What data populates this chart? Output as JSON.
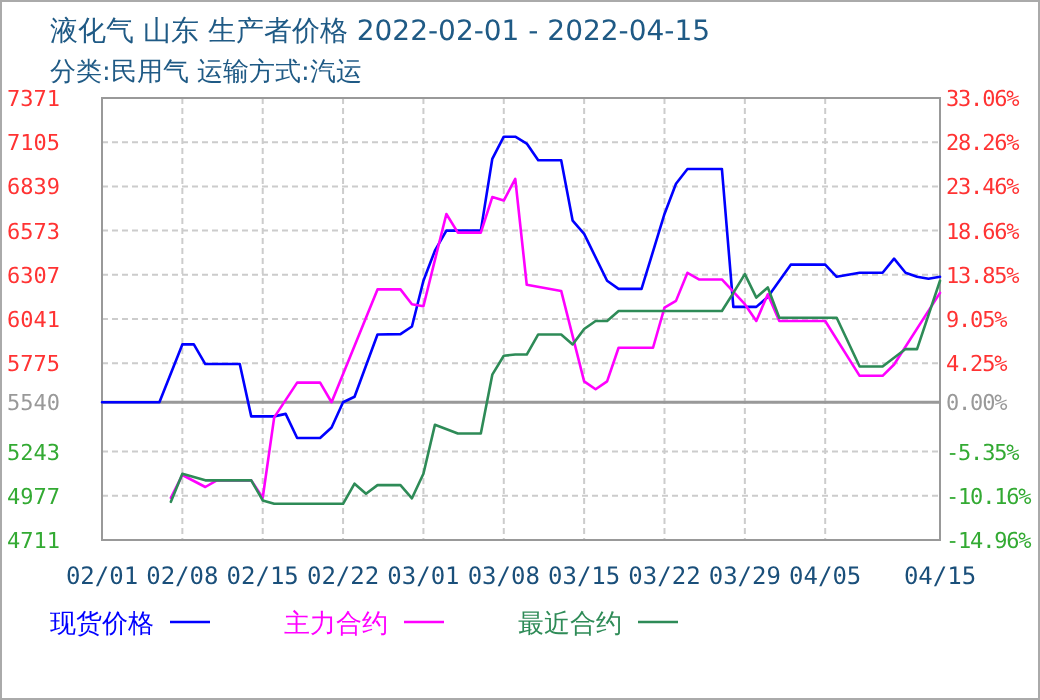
{
  "chart_data": {
    "type": "line",
    "title": "液化气 山东 生产者价格 2022-02-01 - 2022-04-15",
    "subtitle": "分类:民用气 运输方式:汽运",
    "xlim": [
      "2022-02-01",
      "2022-04-15"
    ],
    "xticks": [
      {
        "value": "2022-02-01",
        "label": "02/01"
      },
      {
        "value": "2022-02-08",
        "label": "02/08"
      },
      {
        "value": "2022-02-15",
        "label": "02/15"
      },
      {
        "value": "2022-02-22",
        "label": "02/22"
      },
      {
        "value": "2022-03-01",
        "label": "03/01"
      },
      {
        "value": "2022-03-08",
        "label": "03/08"
      },
      {
        "value": "2022-03-15",
        "label": "03/15"
      },
      {
        "value": "2022-03-22",
        "label": "03/22"
      },
      {
        "value": "2022-03-29",
        "label": "03/29"
      },
      {
        "value": "2022-04-05",
        "label": "04/05"
      },
      {
        "value": "2022-04-15",
        "label": "04/15"
      }
    ],
    "ylim": [
      4711,
      7371
    ],
    "yticks": [
      7371,
      7105,
      6839,
      6573,
      6307,
      6041,
      5775,
      5540,
      5243,
      4977,
      4711
    ],
    "y2lim": [
      -14.96,
      33.06
    ],
    "y2ticks": [
      {
        "value": 33.06,
        "label": "33.06%"
      },
      {
        "value": 28.26,
        "label": "28.26%"
      },
      {
        "value": 23.46,
        "label": "23.46%"
      },
      {
        "value": 18.66,
        "label": "18.66%"
      },
      {
        "value": 13.85,
        "label": "13.85%"
      },
      {
        "value": 9.05,
        "label": "9.05%"
      },
      {
        "value": 4.25,
        "label": "4.25%"
      },
      {
        "value": 0,
        "label": "0.00%"
      },
      {
        "value": -5.35,
        "label": "-5.35%"
      },
      {
        "value": -10.16,
        "label": "-10.16%"
      },
      {
        "value": -14.96,
        "label": "-14.96%"
      }
    ],
    "grid": true,
    "legend": "bottom",
    "ref_lines": [
      {
        "axis": "y",
        "value": 5540,
        "color": "#999999"
      }
    ],
    "series": [
      {
        "name": "现货价格",
        "color": "#0000ff",
        "x": [
          "2022-02-01",
          "2022-02-06",
          "2022-02-08",
          "2022-02-09",
          "2022-02-10",
          "2022-02-13",
          "2022-02-14",
          "2022-02-16",
          "2022-02-17",
          "2022-02-18",
          "2022-02-20",
          "2022-02-21",
          "2022-02-22",
          "2022-02-23",
          "2022-02-25",
          "2022-02-27",
          "2022-02-28",
          "2022-03-01",
          "2022-03-02",
          "2022-03-03",
          "2022-03-06",
          "2022-03-07",
          "2022-03-08",
          "2022-03-09",
          "2022-03-10",
          "2022-03-11",
          "2022-03-13",
          "2022-03-14",
          "2022-03-15",
          "2022-03-17",
          "2022-03-18",
          "2022-03-20",
          "2022-03-22",
          "2022-03-23",
          "2022-03-24",
          "2022-03-27",
          "2022-03-28",
          "2022-03-30",
          "2022-03-31",
          "2022-04-02",
          "2022-04-05",
          "2022-04-06",
          "2022-04-08",
          "2022-04-10",
          "2022-04-11",
          "2022-04-12",
          "2022-04-13",
          "2022-04-14",
          "2022-04-15"
        ],
        "values": [
          5540,
          5540,
          5888,
          5888,
          5770,
          5770,
          5455,
          5455,
          5470,
          5325,
          5325,
          5388,
          5540,
          5573,
          5948,
          5950,
          5996,
          6271,
          6452,
          6573,
          6573,
          7005,
          7138,
          7138,
          7097,
          6996,
          6996,
          6633,
          6553,
          6271,
          6222,
          6222,
          6673,
          6855,
          6944,
          6944,
          6114,
          6114,
          6174,
          6368,
          6368,
          6295,
          6319,
          6319,
          6404,
          6319,
          6295,
          6283,
          6295
        ]
      },
      {
        "name": "主力合约",
        "color": "#ff00ff",
        "x": [
          "2022-02-07",
          "2022-02-08",
          "2022-02-10",
          "2022-02-11",
          "2022-02-14",
          "2022-02-15",
          "2022-02-16",
          "2022-02-18",
          "2022-02-20",
          "2022-02-21",
          "2022-02-25",
          "2022-02-27",
          "2022-02-28",
          "2022-03-01",
          "2022-03-03",
          "2022-03-04",
          "2022-03-06",
          "2022-03-07",
          "2022-03-08",
          "2022-03-09",
          "2022-03-10",
          "2022-03-13",
          "2022-03-15",
          "2022-03-16",
          "2022-03-17",
          "2022-03-18",
          "2022-03-21",
          "2022-03-22",
          "2022-03-23",
          "2022-03-24",
          "2022-03-25",
          "2022-03-27",
          "2022-03-29",
          "2022-03-30",
          "2022-03-31",
          "2022-04-01",
          "2022-04-05",
          "2022-04-08",
          "2022-04-10",
          "2022-04-11",
          "2022-04-15"
        ],
        "values": [
          4965,
          5102,
          5030,
          5070,
          5070,
          4965,
          5449,
          5658,
          5658,
          5540,
          6219,
          6219,
          6130,
          6118,
          6673,
          6561,
          6561,
          6775,
          6754,
          6884,
          6247,
          6210,
          5666,
          5618,
          5666,
          5868,
          5868,
          6110,
          6150,
          6319,
          6279,
          6279,
          6130,
          6029,
          6190,
          6029,
          6029,
          5699,
          5699,
          5767,
          6198
        ]
      },
      {
        "name": "最近合约",
        "color": "#2e8b57",
        "x": [
          "2022-02-07",
          "2022-02-08",
          "2022-02-10",
          "2022-02-14",
          "2022-02-15",
          "2022-02-16",
          "2022-02-22",
          "2022-02-23",
          "2022-02-24",
          "2022-02-25",
          "2022-02-27",
          "2022-02-28",
          "2022-03-01",
          "2022-03-02",
          "2022-03-04",
          "2022-03-06",
          "2022-03-07",
          "2022-03-08",
          "2022-03-09",
          "2022-03-10",
          "2022-03-11",
          "2022-03-13",
          "2022-03-14",
          "2022-03-15",
          "2022-03-16",
          "2022-03-17",
          "2022-03-18",
          "2022-03-27",
          "2022-03-28",
          "2022-03-29",
          "2022-03-30",
          "2022-03-31",
          "2022-04-01",
          "2022-04-06",
          "2022-04-08",
          "2022-04-10",
          "2022-04-12",
          "2022-04-13",
          "2022-04-15"
        ],
        "values": [
          4941,
          5110,
          5070,
          5070,
          4949,
          4929,
          4929,
          5050,
          4989,
          5041,
          5041,
          4962,
          5110,
          5404,
          5352,
          5352,
          5706,
          5820,
          5827,
          5827,
          5948,
          5948,
          5888,
          5981,
          6029,
          6029,
          6089,
          6089,
          6198,
          6311,
          6170,
          6231,
          6049,
          6049,
          5755,
          5755,
          5860,
          5860,
          6271
        ]
      }
    ]
  }
}
